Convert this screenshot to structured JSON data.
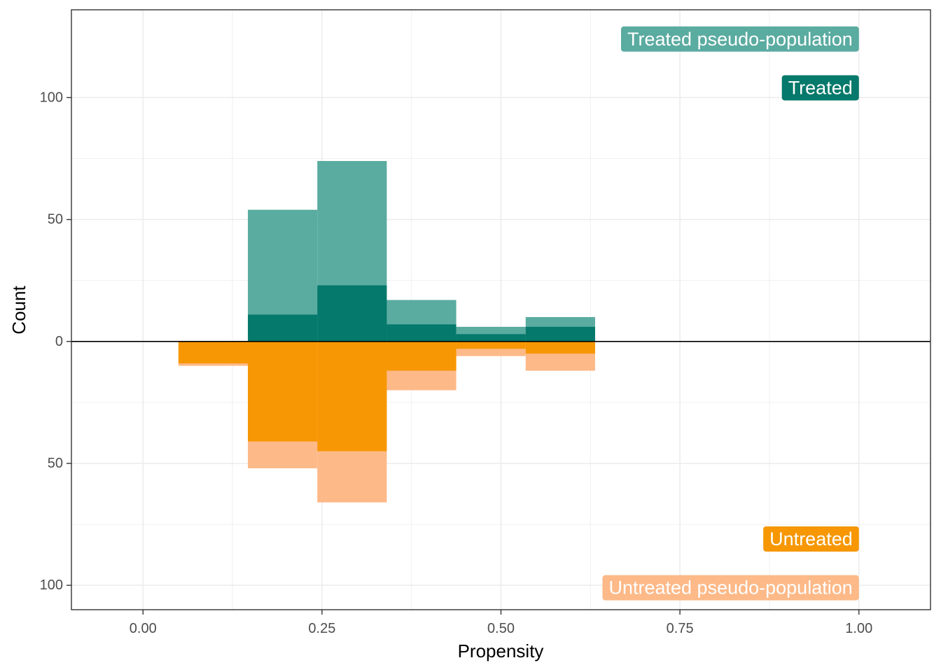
{
  "chart_data": {
    "type": "bar",
    "subtype": "mirrored histogram",
    "xlabel": "Propensity",
    "ylabel": "Count",
    "xlim": [
      -0.1,
      1.1
    ],
    "ylim": [
      -110,
      136
    ],
    "grid": true,
    "x_ticks": [
      {
        "value": 0.0,
        "label": "0.00"
      },
      {
        "value": 0.25,
        "label": "0.25"
      },
      {
        "value": 0.5,
        "label": "0.50"
      },
      {
        "value": 0.75,
        "label": "0.75"
      },
      {
        "value": 1.0,
        "label": "1.00"
      }
    ],
    "y_ticks": [
      {
        "value": 100,
        "label": "100"
      },
      {
        "value": 50,
        "label": "50"
      },
      {
        "value": 0,
        "label": "0"
      },
      {
        "value": -50,
        "label": "50"
      },
      {
        "value": -100,
        "label": "100"
      }
    ],
    "bins": [
      [
        0.0495,
        0.1465
      ],
      [
        0.1465,
        0.2435
      ],
      [
        0.2435,
        0.3405
      ],
      [
        0.3405,
        0.4375
      ],
      [
        0.4375,
        0.5345
      ],
      [
        0.5345,
        0.6315
      ]
    ],
    "series": [
      {
        "name": "Treated pseudo-population",
        "color": "#5aaba0",
        "direction": "up",
        "values": [
          0,
          54,
          74,
          17,
          6,
          10
        ]
      },
      {
        "name": "Treated",
        "color": "#05796b",
        "direction": "up",
        "values": [
          0,
          11,
          23,
          7,
          3,
          6
        ]
      },
      {
        "name": "Untreated pseudo-population",
        "color": "#fdb988",
        "direction": "down",
        "values": [
          10,
          52,
          66,
          20,
          6,
          12
        ]
      },
      {
        "name": "Untreated",
        "color": "#f69703",
        "direction": "down",
        "values": [
          9,
          41,
          45,
          12,
          3,
          5
        ]
      }
    ],
    "annotations": [
      {
        "text": "Treated pseudo-population",
        "color": "#5aaba0",
        "y": 124
      },
      {
        "text": "Treated",
        "color": "#05796b",
        "y": 104
      },
      {
        "text": "Untreated",
        "color": "#f69703",
        "y": -81
      },
      {
        "text": "Untreated pseudo-population",
        "color": "#fdb988",
        "y": -101
      }
    ]
  }
}
